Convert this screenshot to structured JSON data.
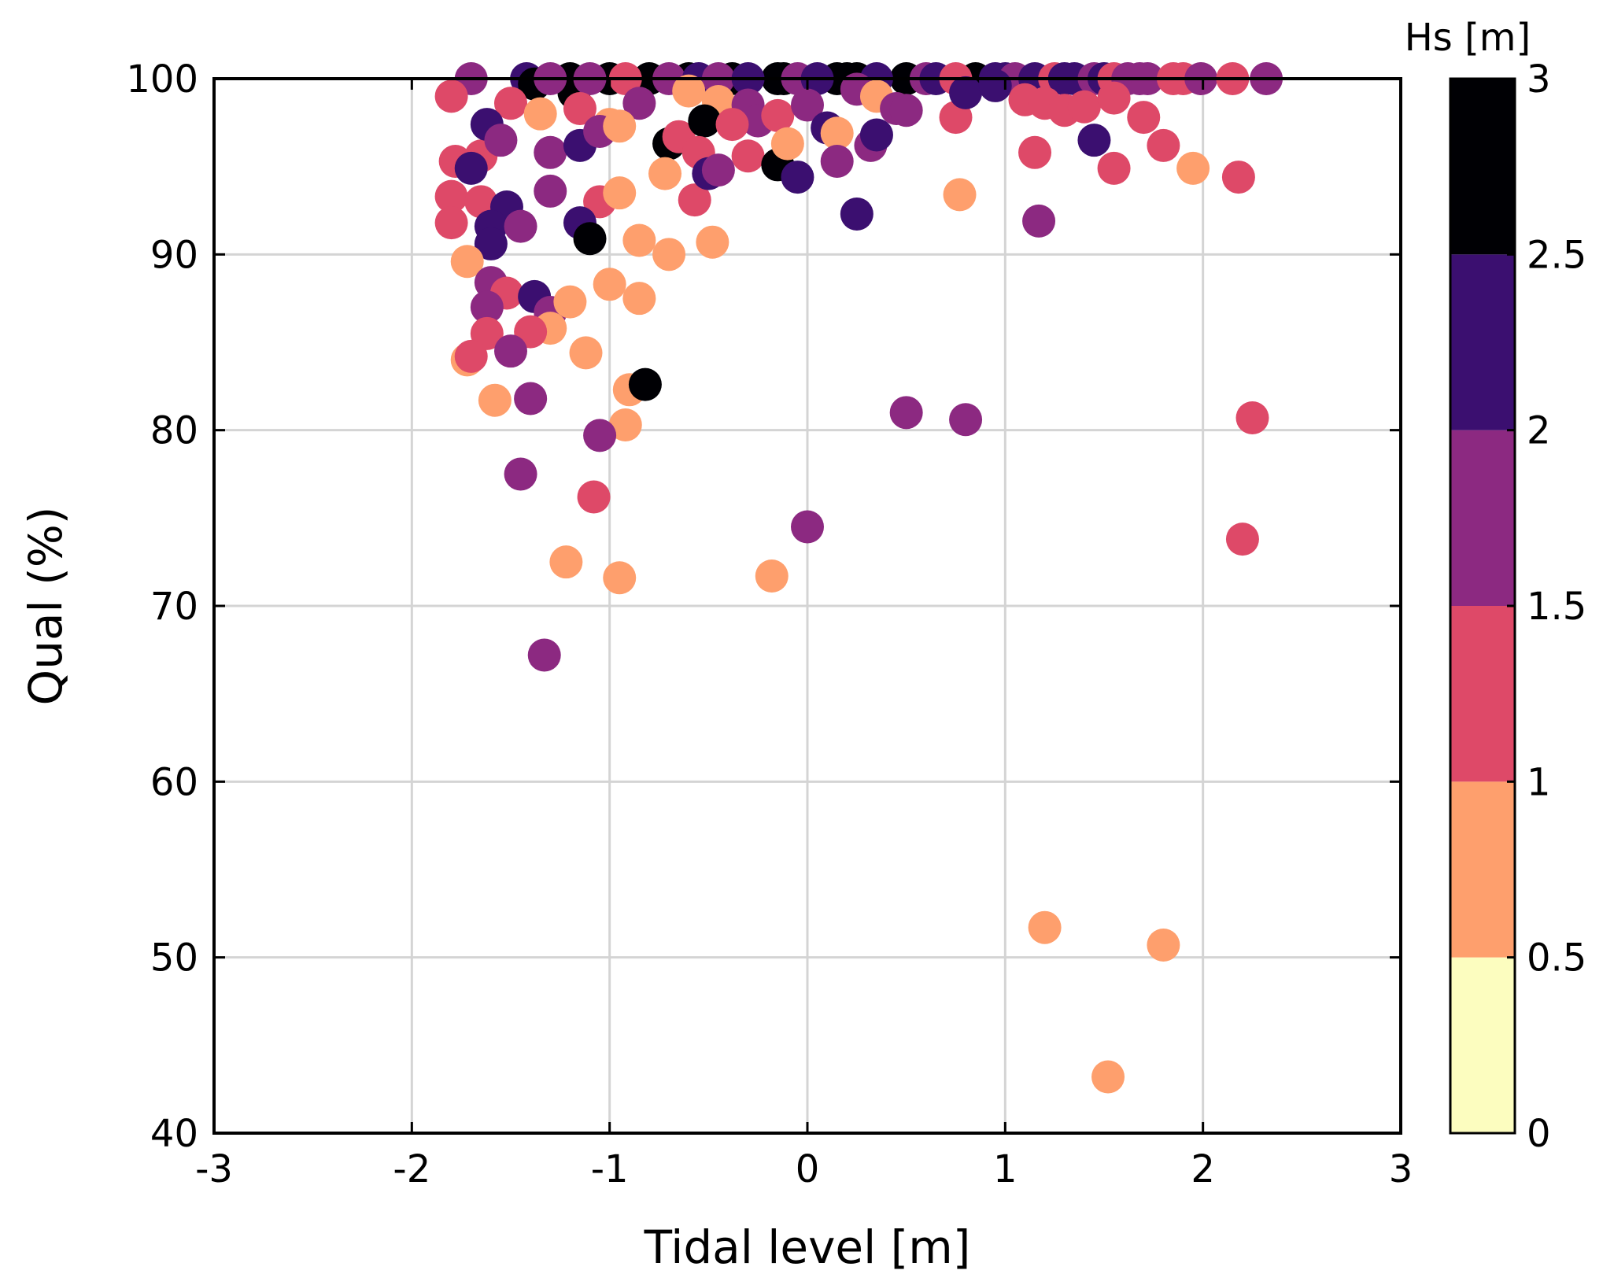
{
  "chart_data": {
    "type": "scatter",
    "title": "",
    "xlabel": "Tidal level [m]",
    "ylabel": "Qual (%)",
    "xlim": [
      -3,
      3
    ],
    "ylim": [
      40,
      100
    ],
    "xticks": [
      -3,
      -2,
      -1,
      0,
      1,
      2,
      3
    ],
    "yticks": [
      40,
      50,
      60,
      70,
      80,
      90,
      100
    ],
    "xtick_labels": [
      "-3",
      "-2",
      "-1",
      "0",
      "1",
      "2",
      "3"
    ],
    "ytick_labels": [
      "40",
      "50",
      "60",
      "70",
      "80",
      "90",
      "100"
    ],
    "grid": true,
    "colorbar": {
      "title": "Hs [m]",
      "range": [
        0,
        3
      ],
      "ticks": [
        "0",
        "0.5",
        "1",
        "1.5",
        "2",
        "2.5",
        "3"
      ],
      "bins": [
        {
          "from": 0.0,
          "to": 0.5,
          "color": "#fcfdbf"
        },
        {
          "from": 0.5,
          "to": 1.0,
          "color": "#fe9f6d"
        },
        {
          "from": 1.0,
          "to": 1.5,
          "color": "#de4968"
        },
        {
          "from": 1.5,
          "to": 2.0,
          "color": "#8c2981"
        },
        {
          "from": 2.0,
          "to": 2.5,
          "color": "#3b0f70"
        },
        {
          "from": 2.5,
          "to": 3.0,
          "color": "#000004"
        }
      ]
    },
    "points": [
      [
        -1.7,
        100,
        1.75
      ],
      [
        -1.42,
        100,
        2.25
      ],
      [
        -1.38,
        99.7,
        2.75
      ],
      [
        -1.2,
        100,
        2.75
      ],
      [
        -1.18,
        99.2,
        2.75
      ],
      [
        -1.0,
        100,
        2.75
      ],
      [
        -0.85,
        99.6,
        2.75
      ],
      [
        -0.8,
        100,
        2.75
      ],
      [
        -0.6,
        100,
        2.75
      ],
      [
        -0.38,
        100,
        2.75
      ],
      [
        -0.15,
        100,
        2.75
      ],
      [
        -0.12,
        100,
        2.75
      ],
      [
        0.15,
        100,
        2.75
      ],
      [
        0.2,
        100,
        2.75
      ],
      [
        0.25,
        100,
        2.75
      ],
      [
        0.5,
        100,
        2.75
      ],
      [
        0.85,
        100,
        2.75
      ],
      [
        -1.3,
        100,
        1.75
      ],
      [
        -1.1,
        100,
        1.75
      ],
      [
        -0.92,
        100,
        1.25
      ],
      [
        -0.7,
        100,
        1.75
      ],
      [
        -0.55,
        100,
        2.25
      ],
      [
        -0.45,
        100,
        1.75
      ],
      [
        -0.3,
        100,
        2.25
      ],
      [
        -0.05,
        100,
        1.75
      ],
      [
        0.05,
        100,
        2.25
      ],
      [
        0.35,
        100,
        2.25
      ],
      [
        0.6,
        100,
        1.75
      ],
      [
        0.65,
        100,
        2.25
      ],
      [
        0.75,
        100,
        1.25
      ],
      [
        0.95,
        100,
        2.25
      ],
      [
        1.0,
        100,
        2.25
      ],
      [
        1.05,
        100,
        1.75
      ],
      [
        1.15,
        100,
        2.25
      ],
      [
        1.25,
        100,
        1.25
      ],
      [
        1.3,
        100,
        2.25
      ],
      [
        1.35,
        100,
        2.25
      ],
      [
        1.45,
        100,
        1.75
      ],
      [
        1.5,
        100,
        2.25
      ],
      [
        1.55,
        100,
        1.25
      ],
      [
        1.62,
        100,
        1.75
      ],
      [
        1.68,
        100,
        1.75
      ],
      [
        1.72,
        100,
        1.75
      ],
      [
        1.85,
        100,
        1.25
      ],
      [
        1.9,
        100,
        1.25
      ],
      [
        1.99,
        100,
        1.75
      ],
      [
        2.15,
        100,
        1.25
      ],
      [
        2.32,
        100,
        1.75
      ],
      [
        -1.8,
        99.0,
        1.25
      ],
      [
        -1.5,
        98.6,
        1.25
      ],
      [
        -1.35,
        98.0,
        0.75
      ],
      [
        -1.15,
        98.3,
        1.25
      ],
      [
        -1.0,
        97.4,
        0.75
      ],
      [
        -0.85,
        98.6,
        1.75
      ],
      [
        -0.6,
        99.3,
        0.75
      ],
      [
        -0.45,
        98.7,
        0.75
      ],
      [
        -0.3,
        98.5,
        1.75
      ],
      [
        -0.25,
        97.6,
        1.75
      ],
      [
        -0.15,
        97.9,
        1.25
      ],
      [
        0.0,
        98.5,
        1.75
      ],
      [
        0.25,
        99.4,
        1.75
      ],
      [
        0.35,
        99.0,
        0.75
      ],
      [
        0.45,
        98.3,
        1.75
      ],
      [
        0.5,
        98.2,
        1.75
      ],
      [
        0.75,
        97.8,
        1.25
      ],
      [
        0.8,
        99.2,
        2.25
      ],
      [
        0.95,
        99.6,
        2.25
      ],
      [
        1.1,
        98.8,
        1.25
      ],
      [
        1.2,
        98.6,
        1.25
      ],
      [
        1.3,
        98.2,
        1.25
      ],
      [
        1.4,
        98.4,
        1.25
      ],
      [
        1.55,
        98.9,
        1.25
      ],
      [
        1.7,
        97.8,
        1.25
      ],
      [
        -1.65,
        95.6,
        1.25
      ],
      [
        -1.62,
        97.4,
        2.25
      ],
      [
        -1.55,
        96.5,
        1.75
      ],
      [
        -1.3,
        95.8,
        1.75
      ],
      [
        -1.15,
        96.2,
        2.25
      ],
      [
        -1.05,
        97.0,
        1.75
      ],
      [
        -0.95,
        97.3,
        0.75
      ],
      [
        -0.7,
        96.3,
        2.75
      ],
      [
        -0.65,
        96.7,
        1.25
      ],
      [
        -0.52,
        97.6,
        2.75
      ],
      [
        -0.55,
        95.8,
        1.25
      ],
      [
        -0.38,
        97.4,
        1.25
      ],
      [
        -0.3,
        95.6,
        1.25
      ],
      [
        -0.15,
        95.1,
        2.75
      ],
      [
        -0.05,
        94.4,
        2.25
      ],
      [
        -0.1,
        96.3,
        0.75
      ],
      [
        0.1,
        97.2,
        2.25
      ],
      [
        0.15,
        96.9,
        0.75
      ],
      [
        0.15,
        95.3,
        1.75
      ],
      [
        0.32,
        96.2,
        1.75
      ],
      [
        0.35,
        96.8,
        2.25
      ],
      [
        1.15,
        95.8,
        1.25
      ],
      [
        1.45,
        96.5,
        2.25
      ],
      [
        1.55,
        94.9,
        1.25
      ],
      [
        1.8,
        96.2,
        1.25
      ],
      [
        1.95,
        94.9,
        0.75
      ],
      [
        2.18,
        94.4,
        1.25
      ],
      [
        -1.78,
        95.3,
        1.25
      ],
      [
        -1.7,
        94.9,
        2.25
      ],
      [
        -1.8,
        93.3,
        1.25
      ],
      [
        -1.65,
        93.0,
        1.25
      ],
      [
        -1.52,
        92.7,
        2.25
      ],
      [
        -1.3,
        93.6,
        1.75
      ],
      [
        -1.05,
        93.0,
        1.25
      ],
      [
        -0.95,
        93.5,
        0.75
      ],
      [
        -0.72,
        94.6,
        0.75
      ],
      [
        -0.57,
        93.1,
        1.25
      ],
      [
        -0.5,
        94.6,
        2.25
      ],
      [
        -0.45,
        94.8,
        1.75
      ],
      [
        0.25,
        92.3,
        2.25
      ],
      [
        0.77,
        93.4,
        0.75
      ],
      [
        -1.8,
        91.8,
        1.25
      ],
      [
        -1.6,
        91.6,
        2.25
      ],
      [
        -1.6,
        90.6,
        2.25
      ],
      [
        -1.45,
        91.6,
        1.75
      ],
      [
        -1.15,
        91.8,
        2.25
      ],
      [
        -1.1,
        90.9,
        2.75
      ],
      [
        -0.85,
        90.8,
        0.75
      ],
      [
        -0.7,
        90.0,
        0.75
      ],
      [
        -0.48,
        90.7,
        0.75
      ],
      [
        1.17,
        91.9,
        1.75
      ],
      [
        -1.72,
        89.6,
        0.75
      ],
      [
        -1.6,
        88.4,
        1.75
      ],
      [
        -1.52,
        87.8,
        1.25
      ],
      [
        -1.62,
        87.0,
        1.75
      ],
      [
        -1.38,
        87.6,
        2.25
      ],
      [
        -1.3,
        86.7,
        1.75
      ],
      [
        -1.3,
        85.8,
        0.75
      ],
      [
        -1.2,
        87.3,
        0.75
      ],
      [
        -1.0,
        88.3,
        0.75
      ],
      [
        -0.85,
        87.5,
        0.75
      ],
      [
        -1.62,
        85.5,
        1.25
      ],
      [
        -1.4,
        85.6,
        1.25
      ],
      [
        -1.5,
        84.5,
        1.75
      ],
      [
        -1.72,
        84.0,
        0.75
      ],
      [
        -1.7,
        84.2,
        1.25
      ],
      [
        -1.12,
        84.4,
        0.75
      ],
      [
        -0.9,
        82.3,
        0.75
      ],
      [
        -0.82,
        82.6,
        2.75
      ],
      [
        -1.58,
        81.7,
        0.75
      ],
      [
        -1.4,
        81.8,
        1.75
      ],
      [
        -0.92,
        80.3,
        0.75
      ],
      [
        -1.05,
        79.7,
        1.75
      ],
      [
        0.5,
        81.0,
        1.75
      ],
      [
        0.8,
        80.6,
        1.75
      ],
      [
        2.25,
        80.7,
        1.25
      ],
      [
        -1.45,
        77.5,
        1.75
      ],
      [
        -1.08,
        76.2,
        1.25
      ],
      [
        0.0,
        74.5,
        1.75
      ],
      [
        2.2,
        73.8,
        1.25
      ],
      [
        -1.22,
        72.5,
        0.75
      ],
      [
        -0.95,
        71.6,
        0.75
      ],
      [
        -0.18,
        71.7,
        0.75
      ],
      [
        -1.33,
        67.2,
        1.75
      ],
      [
        1.2,
        51.7,
        0.75
      ],
      [
        1.8,
        50.7,
        0.75
      ],
      [
        1.52,
        43.2,
        0.75
      ]
    ]
  }
}
